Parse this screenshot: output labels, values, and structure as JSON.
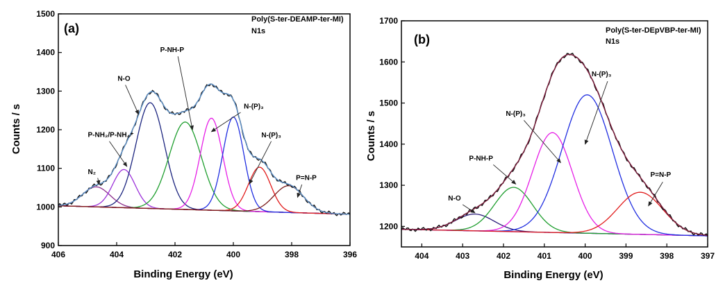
{
  "chart_data": [
    {
      "type": "line",
      "panel_label": "(a)",
      "title": "Poly(S-ter-DEAMP-ter-MI)",
      "subtitle": "N1s",
      "xlabel": "Binding Energy (eV)",
      "ylabel": "Counts / s",
      "xlim": [
        406,
        396
      ],
      "ylim": [
        900,
        1500
      ],
      "x_reversed": true,
      "xticks": [
        "406",
        "404",
        "402",
        "400",
        "398",
        "396"
      ],
      "yticks": [
        "900",
        "1000",
        "1100",
        "1200",
        "1300",
        "1400",
        "1500"
      ],
      "grid": false,
      "baseline": {
        "start": [
          406,
          1003
        ],
        "end": [
          396,
          981
        ]
      },
      "components": [
        {
          "center": 404.7,
          "height": 1052,
          "fwhm": 1.1,
          "color": "#8a2a8a"
        },
        {
          "center": 403.75,
          "height": 1097,
          "fwhm": 0.9,
          "color": "#9b30d9"
        },
        {
          "center": 402.85,
          "height": 1270,
          "fwhm": 1.15,
          "color": "#1a237e"
        },
        {
          "center": 401.65,
          "height": 1220,
          "fwhm": 1.3,
          "color": "#1e9e2e"
        },
        {
          "center": 400.75,
          "height": 1230,
          "fwhm": 0.9,
          "color": "#e61ee6"
        },
        {
          "center": 400.0,
          "height": 1233,
          "fwhm": 0.85,
          "color": "#1f2de0"
        },
        {
          "center": 399.1,
          "height": 1103,
          "fwhm": 0.9,
          "color": "#e11b1b"
        },
        {
          "center": 398.1,
          "height": 1055,
          "fwhm": 1.2,
          "color": "#7a1a1a"
        }
      ],
      "raw_color": "#111111",
      "envelope_color": "#5b8fc7",
      "baseline_color": "#8a8a2e",
      "annotations": [
        {
          "text": "N₂",
          "label_at": [
            404.85,
            1085
          ],
          "arrow_from": [
            404.65,
            1075
          ],
          "arrow_to": [
            404.6,
            1058
          ]
        },
        {
          "text": "P-NH₂/P-NH₄⁺",
          "label_at": [
            404.2,
            1181
          ],
          "arrow_from": [
            404.25,
            1170
          ],
          "arrow_to": [
            403.65,
            1105
          ]
        },
        {
          "text": "N-O",
          "label_at": [
            403.75,
            1327
          ],
          "arrow_from": [
            403.7,
            1316
          ],
          "arrow_to": [
            403.25,
            1240
          ]
        },
        {
          "text": "P-NH-P",
          "label_at": [
            402.1,
            1401
          ],
          "arrow_from": [
            401.9,
            1390
          ],
          "arrow_to": [
            401.4,
            1200
          ]
        },
        {
          "text": "N-(P)₃",
          "label_at": [
            399.3,
            1255
          ],
          "arrow_from": [
            399.75,
            1245
          ],
          "arrow_to": [
            400.75,
            1195
          ]
        },
        {
          "text": "N-(P)₃",
          "label_at": [
            398.7,
            1180
          ],
          "arrow_from": [
            398.7,
            1170
          ],
          "arrow_to": [
            399.45,
            1060
          ]
        },
        {
          "text": "P=N-P",
          "label_at": [
            397.5,
            1070
          ],
          "arrow_from": [
            397.65,
            1058
          ],
          "arrow_to": [
            397.8,
            1025
          ]
        }
      ]
    },
    {
      "type": "line",
      "panel_label": "(b)",
      "title": "Poly(S-ter-DEpVBP-ter-MI)",
      "subtitle": "N1s",
      "xlabel": "Binding Energy (eV)",
      "ylabel": "Counts / s",
      "xlim": [
        404.5,
        397
      ],
      "ylim": [
        1150,
        1700
      ],
      "x_reversed": true,
      "xticks": [
        "404",
        "403",
        "402",
        "401",
        "400",
        "399",
        "398",
        "397"
      ],
      "yticks": [
        "1200",
        "1300",
        "1400",
        "1500",
        "1600",
        "1700"
      ],
      "grid": false,
      "baseline": {
        "start": [
          404.5,
          1193
        ],
        "end": [
          397,
          1177
        ]
      },
      "components": [
        {
          "center": 402.7,
          "height": 1230,
          "fwhm": 1.1,
          "color": "#2a1a7a"
        },
        {
          "center": 401.75,
          "height": 1295,
          "fwhm": 1.1,
          "color": "#1e9e2e"
        },
        {
          "center": 400.8,
          "height": 1428,
          "fwhm": 1.15,
          "color": "#e61ee6"
        },
        {
          "center": 399.95,
          "height": 1520,
          "fwhm": 1.45,
          "color": "#1f2de0"
        },
        {
          "center": 398.65,
          "height": 1283,
          "fwhm": 1.3,
          "color": "#e11b1b"
        }
      ],
      "raw_color": "#111111",
      "envelope_color": "#7a1a3a",
      "baseline_color": "#8a2ad9",
      "annotations": [
        {
          "text": "N-O",
          "label_at": [
            403.2,
            1263
          ],
          "arrow_from": [
            403.0,
            1253
          ],
          "arrow_to": [
            402.7,
            1233
          ]
        },
        {
          "text": "P-NH-P",
          "label_at": [
            402.55,
            1360
          ],
          "arrow_from": [
            402.25,
            1350
          ],
          "arrow_to": [
            401.7,
            1303
          ]
        },
        {
          "text": "N-(P)₃",
          "label_at": [
            401.7,
            1469
          ],
          "arrow_from": [
            401.5,
            1458
          ],
          "arrow_to": [
            400.6,
            1355
          ]
        },
        {
          "text": "N-(P)₃",
          "label_at": [
            399.6,
            1565
          ],
          "arrow_from": [
            399.45,
            1553
          ],
          "arrow_to": [
            400.0,
            1400
          ]
        },
        {
          "text": "P=N-P",
          "label_at": [
            398.15,
            1320
          ],
          "arrow_from": [
            398.1,
            1308
          ],
          "arrow_to": [
            398.45,
            1250
          ]
        }
      ]
    }
  ]
}
